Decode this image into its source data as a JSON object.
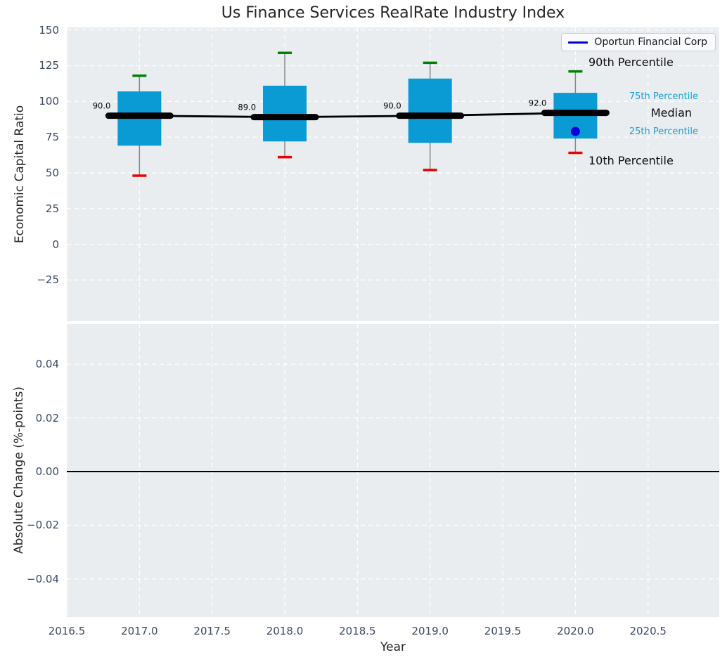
{
  "title": "Us Finance Services RealRate Industry Index",
  "legend": {
    "label": "Oportun Financial Corp"
  },
  "colors": {
    "box_fill": "#0a9bd4",
    "whisker": "#888888",
    "cap_high": "#008000",
    "cap_low": "#ed0000",
    "median_line": "#000000",
    "company_line": "#0000dd",
    "percentile_text": "#1d9fd4",
    "tick_text": "#3d4a63",
    "plot_bg": "#e9edf0",
    "grid": "#ffffff",
    "zero_line": "#000000"
  },
  "annotations": [
    {
      "label": "90th Percentile",
      "x_year": 2020.09,
      "y_value": 126.5,
      "style": "big"
    },
    {
      "label": "75th Percentile",
      "x_year": 2020.37,
      "y_value": 103.0,
      "style": "small"
    },
    {
      "label": "Median",
      "x_year": 2020.52,
      "y_value": 91.5,
      "style": "big"
    },
    {
      "label": "25th Percentile",
      "x_year": 2020.37,
      "y_value": 78.5,
      "style": "small"
    },
    {
      "label": "10th Percentile",
      "x_year": 2020.09,
      "y_value": 58.0,
      "style": "big"
    }
  ],
  "chart_data": [
    {
      "type": "boxplot",
      "title": "Us Finance Services RealRate Industry Index",
      "xlabel": "Year",
      "ylabel": "Economic Capital Ratio",
      "xlim": [
        2016.5,
        2020.99
      ],
      "ylim": [
        -53.8,
        151.8
      ],
      "grid": true,
      "xtick_values": [
        2016.5,
        2017.0,
        2017.5,
        2018.0,
        2018.5,
        2019.0,
        2019.5,
        2020.0,
        2020.5
      ],
      "xtick_labels": [
        "2016.5",
        "2017.0",
        "2017.5",
        "2018.0",
        "2018.5",
        "2019.0",
        "2019.5",
        "2020.0",
        "2020.5"
      ],
      "ytick_values": [
        150,
        125,
        100,
        75,
        50,
        25,
        0,
        -25
      ],
      "ytick_labels": [
        "150",
        "125",
        "100",
        "75",
        "50",
        "25",
        "0",
        "−25"
      ],
      "boxes": [
        {
          "year": 2017,
          "p90": 118,
          "q3": 107,
          "median": 90.0,
          "q1": 69,
          "p10": 48,
          "median_label": "90.0"
        },
        {
          "year": 2018,
          "p90": 134,
          "q3": 111,
          "median": 89.0,
          "q1": 72,
          "p10": 61,
          "median_label": "89.0"
        },
        {
          "year": 2019,
          "p90": 127,
          "q3": 116,
          "median": 90.0,
          "q1": 71,
          "p10": 52,
          "median_label": "90.0"
        },
        {
          "year": 2020,
          "p90": 121,
          "q3": 106,
          "median": 92.0,
          "q1": 74,
          "p10": 64,
          "median_label": "92.0"
        }
      ],
      "median_series": {
        "name": "Median",
        "x": [
          2017,
          2018,
          2019,
          2020
        ],
        "y": [
          90.0,
          89.0,
          90.0,
          92.0
        ]
      },
      "company_series": {
        "name": "Oportun Financial Corp",
        "x": [
          2020
        ],
        "y": [
          79
        ]
      },
      "legend_position": "upper right"
    },
    {
      "type": "line",
      "xlabel": "Year",
      "ylabel": "Absolute Change (%-points)",
      "xlim": [
        2016.5,
        2020.99
      ],
      "ylim": [
        -0.0542,
        0.055
      ],
      "grid": true,
      "xtick_values": [
        2016.5,
        2017.0,
        2017.5,
        2018.0,
        2018.5,
        2019.0,
        2019.5,
        2020.0,
        2020.5
      ],
      "ytick_values": [
        0.04,
        0.02,
        0.0,
        -0.02,
        -0.04
      ],
      "ytick_labels": [
        "0.04",
        "0.02",
        "0.00",
        "−0.02",
        "−0.04"
      ],
      "zero_line_y": 0.0,
      "series": []
    }
  ]
}
